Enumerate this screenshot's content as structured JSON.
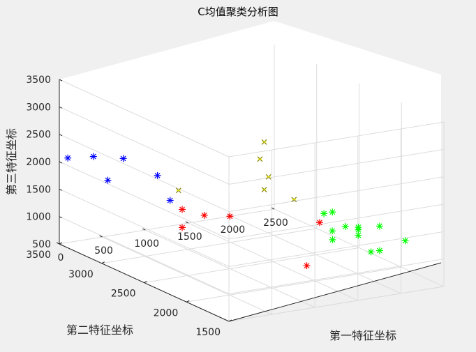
{
  "chart_data": {
    "type": "scatter",
    "title": "C均值聚类分析图",
    "xlabel": "第一特征坐标",
    "ylabel": "第二特征坐标",
    "zlabel": "第三特征坐标",
    "xlim": [
      0,
      2500
    ],
    "ylim": [
      1500,
      3500
    ],
    "zlim": [
      500,
      3500
    ],
    "xticks": [
      "0",
      "500",
      "1000",
      "1500",
      "2000",
      "2500"
    ],
    "yticks": [
      "1500",
      "2000",
      "2500",
      "3000",
      "3500"
    ],
    "zticks": [
      "500",
      "1000",
      "1500",
      "2000",
      "2500",
      "3000",
      "3500"
    ],
    "grid": true,
    "colors": {
      "cluster1": "#ff0000",
      "cluster2": "#0000ff",
      "cluster3": "#00ff00",
      "cluster4": "#808000"
    },
    "series": [
      {
        "marker": "*",
        "color": "#ff0000",
        "points": [
          [
            590,
            2650,
            1250
          ],
          [
            590,
            2650,
            1580
          ],
          [
            850,
            2350,
            1600
          ],
          [
            700,
            2500,
            1550
          ],
          [
            1450,
            1900,
            1650
          ],
          [
            1250,
            1850,
            950
          ]
        ]
      },
      {
        "marker": "*",
        "color": "#0000ff",
        "points": [
          [
            50,
            3450,
            2090
          ],
          [
            100,
            3200,
            2280
          ],
          [
            300,
            3050,
            2300
          ],
          [
            500,
            2850,
            2080
          ],
          [
            150,
            3080,
            1920
          ],
          [
            450,
            2650,
            1780
          ]
        ]
      },
      {
        "marker": "*",
        "color": "#00ff00",
        "points": [
          [
            1500,
            1800,
            1900
          ],
          [
            1450,
            1850,
            1850
          ],
          [
            1350,
            1650,
            1700
          ],
          [
            1700,
            1850,
            1550
          ],
          [
            1800,
            1800,
            1500
          ],
          [
            1850,
            1850,
            1500
          ],
          [
            1950,
            1700,
            1600
          ],
          [
            2100,
            1550,
            1400
          ],
          [
            1750,
            1600,
            1250
          ],
          [
            1900,
            1650,
            1200
          ],
          [
            1600,
            1900,
            1300
          ],
          [
            1800,
            1800,
            1400
          ]
        ]
      },
      {
        "marker": "x",
        "color": "#808000",
        "points": [
          [
            400,
            2500,
            2080
          ],
          [
            1150,
            2250,
            2080
          ],
          [
            1200,
            2250,
            2300
          ],
          [
            1100,
            2250,
            2650
          ],
          [
            1200,
            2300,
            2900
          ],
          [
            1250,
            2000,
            2050
          ]
        ]
      }
    ]
  }
}
